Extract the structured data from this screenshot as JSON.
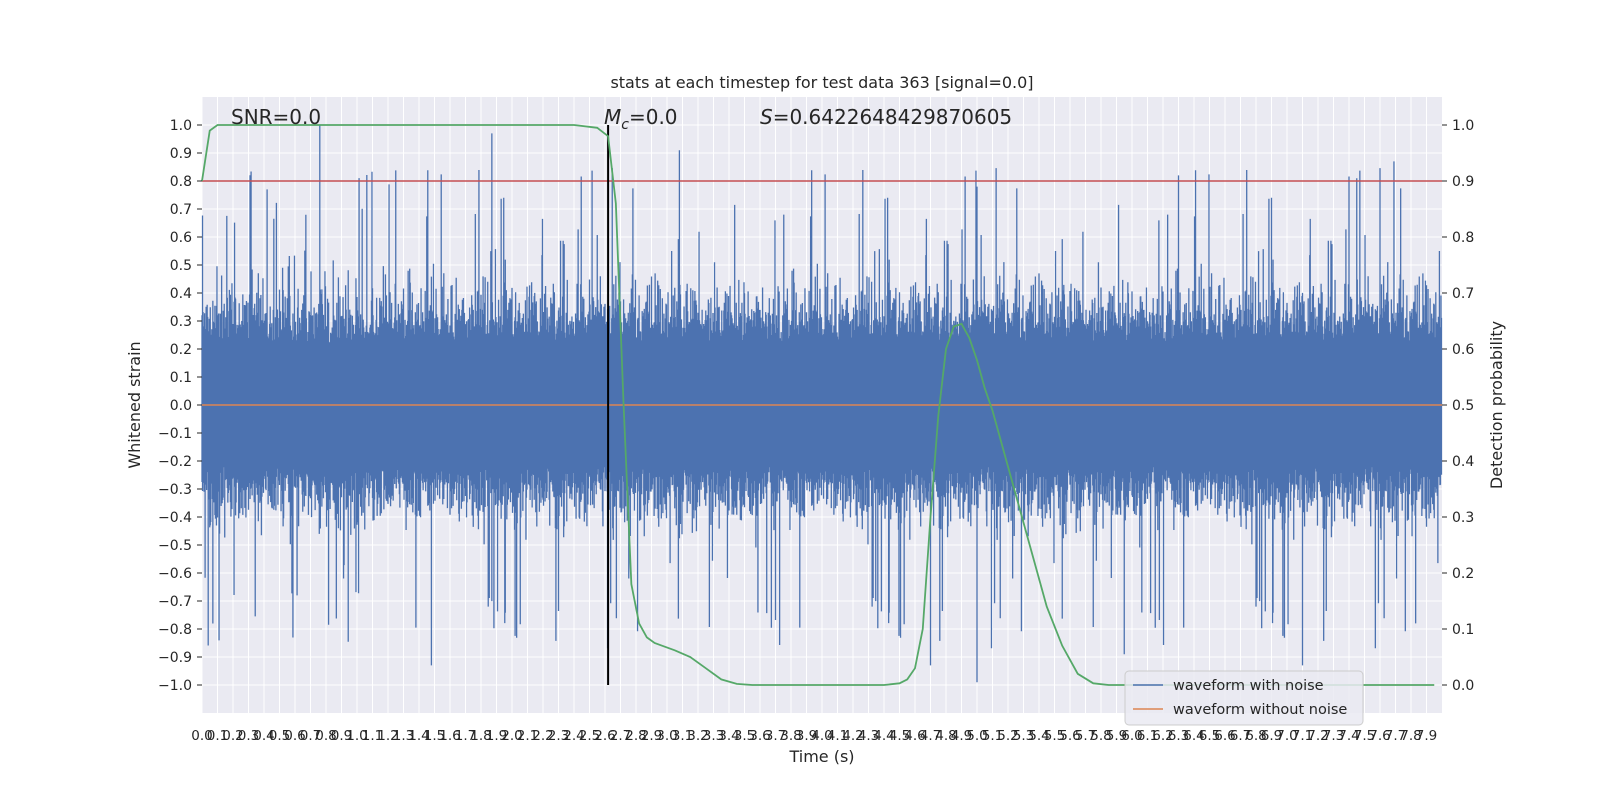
{
  "chart_data": {
    "type": "line",
    "title": "stats at each timestep for test data 363 [signal=0.0]",
    "xlabel": "Time (s)",
    "ylabel_left": "Whitened strain",
    "ylabel_right": "Detection probability",
    "xlim": [
      0,
      8
    ],
    "ylim_left": [
      -1.1,
      1.1
    ],
    "ylim_right": [
      -0.05,
      1.05
    ],
    "x_ticks": [
      0.0,
      0.1,
      0.2,
      0.3,
      0.4,
      0.5,
      0.6,
      0.7,
      0.8,
      0.9,
      1.0,
      1.1,
      1.2,
      1.3,
      1.4,
      1.5,
      1.6,
      1.7,
      1.8,
      1.9,
      2.0,
      2.1,
      2.2,
      2.3,
      2.4,
      2.5,
      2.6,
      2.7,
      2.8,
      2.9,
      3.0,
      3.1,
      3.2,
      3.3,
      3.4,
      3.5,
      3.6,
      3.7,
      3.8,
      3.9,
      4.0,
      4.1,
      4.2,
      4.3,
      4.4,
      4.5,
      4.6,
      4.7,
      4.8,
      4.9,
      5.0,
      5.1,
      5.2,
      5.3,
      5.4,
      5.5,
      5.6,
      5.7,
      5.8,
      5.9,
      6.0,
      6.1,
      6.2,
      6.3,
      6.4,
      6.5,
      6.6,
      6.7,
      6.8,
      6.9,
      7.0,
      7.1,
      7.2,
      7.3,
      7.4,
      7.5,
      7.6,
      7.7,
      7.8,
      7.9
    ],
    "x_tick_labels": [
      "0.0",
      "0.1",
      "0.2",
      "0.3",
      "0.4",
      "0.5",
      "0.6",
      "0.7",
      "0.8",
      "0.9",
      "1.0",
      "1.1",
      "1.2",
      "1.3",
      "1.4",
      "1.5",
      "1.6",
      "1.7",
      "1.8",
      "1.9",
      "2.0",
      "2.1",
      "2.2",
      "2.3",
      "2.4",
      "2.5",
      "2.6",
      "2.7",
      "2.8",
      "2.9",
      "3.0",
      "3.1",
      "3.2",
      "3.3",
      "3.4",
      "3.5",
      "3.6",
      "3.7",
      "3.8",
      "3.9",
      "4.0",
      "4.1",
      "4.2",
      "4.3",
      "4.4",
      "4.5",
      "4.6",
      "4.7",
      "4.8",
      "4.9",
      "5.0",
      "5.1",
      "5.2",
      "5.3",
      "5.4",
      "5.5",
      "5.6",
      "5.7",
      "5.8",
      "5.9",
      "6.0",
      "6.1",
      "6.2",
      "6.3",
      "6.4",
      "6.5",
      "6.6",
      "6.7",
      "6.8",
      "6.9",
      "7.0",
      "7.1",
      "7.2",
      "7.3",
      "7.4",
      "7.5",
      "7.6",
      "7.7",
      "7.8",
      "7.9"
    ],
    "y_ticks_left": [
      1.0,
      0.9,
      0.8,
      0.7,
      0.6,
      0.5,
      0.4,
      0.3,
      0.2,
      0.1,
      0.0,
      -0.1,
      -0.2,
      -0.3,
      -0.4,
      -0.5,
      -0.6,
      -0.7,
      -0.8,
      -0.9,
      -1.0
    ],
    "y_tick_labels_left": [
      "1.0",
      "0.9",
      "0.8",
      "0.7",
      "0.6",
      "0.5",
      "0.4",
      "0.3",
      "0.2",
      "0.1",
      "0.0",
      "−0.1",
      "−0.2",
      "−0.3",
      "−0.4",
      "−0.5",
      "−0.6",
      "−0.7",
      "−0.8",
      "−0.9",
      "−1.0"
    ],
    "y_ticks_right": [
      1.0,
      0.9,
      0.8,
      0.7,
      0.6,
      0.5,
      0.4,
      0.3,
      0.2,
      0.1,
      0.0
    ],
    "y_tick_labels_right": [
      "1.0",
      "0.9",
      "0.8",
      "0.7",
      "0.6",
      "0.5",
      "0.4",
      "0.3",
      "0.2",
      "0.1",
      "0.0"
    ],
    "annotations": {
      "snr": "SNR=0.0",
      "mc_symbol": "M",
      "mc_sub": "c",
      "mc_value": "=0.0",
      "s_symbol": "S",
      "s_value": "=0.6422648429870605"
    },
    "threshold": {
      "y_right": 0.9,
      "color": "#c44e52"
    },
    "marker_line": {
      "x": 2.62,
      "color": "#000000"
    },
    "series": [
      {
        "name": "waveform with noise",
        "color": "#4c72b0",
        "axis": "left",
        "description_values": "dense whitened noise, approx. range -0.99 to 1.0"
      },
      {
        "name": "waveform without noise",
        "color": "#dd8452",
        "axis": "left",
        "constant": 0.0
      },
      {
        "name": "detection probability",
        "color": "#55a868",
        "axis": "right",
        "x": [
          0.0,
          0.05,
          0.1,
          0.2,
          0.3,
          0.5,
          1.0,
          1.5,
          2.0,
          2.4,
          2.55,
          2.62,
          2.67,
          2.72,
          2.77,
          2.82,
          2.87,
          2.92,
          2.97,
          3.05,
          3.15,
          3.25,
          3.35,
          3.45,
          3.55,
          3.65,
          3.8,
          4.0,
          4.2,
          4.4,
          4.5,
          4.55,
          4.6,
          4.65,
          4.7,
          4.75,
          4.8,
          4.85,
          4.9,
          4.95,
          5.0,
          5.05,
          5.1,
          5.15,
          5.25,
          5.35,
          5.45,
          5.55,
          5.65,
          5.75,
          5.85,
          5.95,
          6.0,
          6.2,
          6.5,
          7.0,
          7.5,
          7.95
        ],
        "y": [
          0.9,
          0.99,
          1.0,
          1.0,
          1.0,
          1.0,
          1.0,
          1.0,
          1.0,
          1.0,
          0.995,
          0.98,
          0.86,
          0.5,
          0.18,
          0.11,
          0.085,
          0.075,
          0.07,
          0.062,
          0.05,
          0.03,
          0.01,
          0.002,
          0.0,
          0.0,
          0.0,
          0.0,
          0.0,
          0.0,
          0.003,
          0.01,
          0.03,
          0.1,
          0.3,
          0.48,
          0.6,
          0.64,
          0.645,
          0.62,
          0.58,
          0.53,
          0.49,
          0.44,
          0.34,
          0.24,
          0.14,
          0.07,
          0.02,
          0.003,
          0.0,
          0.0,
          0.0,
          0.0,
          0.0,
          0.0,
          0.0,
          0.0
        ]
      }
    ],
    "legend": {
      "position": "lower-right",
      "entries": [
        "waveform with noise",
        "waveform without noise"
      ]
    },
    "background_color": "#eaeaf2",
    "grid": true
  }
}
